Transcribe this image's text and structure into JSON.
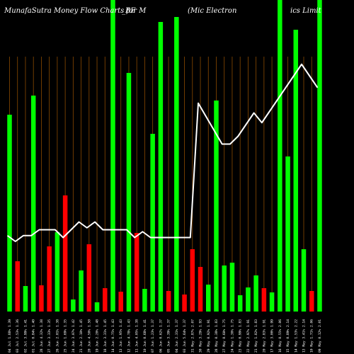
{
  "chart_data": {
    "type": "bar",
    "title_left": "MunafaSutra  Money Flow  Charts for M",
    "title_mid": "_BE",
    "title_right_1": "(Mic Electron",
    "title_right_2": "ics Limit",
    "colors": {
      "up": "#00ff00",
      "down": "#ff0000",
      "grid": "#8b4a00",
      "line": "#ffffff",
      "background": "#000000"
    },
    "bars": [
      {
        "label": "04 Jul 1.88% 1.39",
        "value": 278,
        "color": "up"
      },
      {
        "label": "03 Jul 2.53% 1.36",
        "value": 71,
        "color": "down"
      },
      {
        "label": "02 Jul 3.99% 1.41",
        "value": 36,
        "color": "up"
      },
      {
        "label": "01 Jul 0.84% 1.40",
        "value": 305,
        "color": "up"
      },
      {
        "label": "28 Jun 4.32% 1.38",
        "value": 37,
        "color": "down"
      },
      {
        "label": "27 Jun 3.33% 1.35",
        "value": 92,
        "color": "down"
      },
      {
        "label": "26 Jun 2.01% 1.38",
        "value": 112,
        "color": "up"
      },
      {
        "label": "25 Jun 1.69% 1.35",
        "value": 164,
        "color": "down"
      },
      {
        "label": "24 Jun 3.07% 1.42",
        "value": 17,
        "color": "up"
      },
      {
        "label": "21 Jun 2.10% 1.45",
        "value": 58,
        "color": "up"
      },
      {
        "label": "20 Jun 4.50% 1.50",
        "value": 95,
        "color": "down"
      },
      {
        "label": "19 Jun 2.20% 1.48",
        "value": 13,
        "color": "up"
      },
      {
        "label": "18 Jun 3.31% 1.45",
        "value": 33,
        "color": "down"
      },
      {
        "label": "14 Jun 0.75% 1.43",
        "value": 440,
        "color": "up"
      },
      {
        "label": "13 Jun 1.95% 1.43",
        "value": 28,
        "color": "down"
      },
      {
        "label": "12 Jun 4.78% 1.43",
        "value": 337,
        "color": "up"
      },
      {
        "label": "11 Jun 4.05% 1.38",
        "value": 111,
        "color": "down"
      },
      {
        "label": "10 Jun 0.68% 1.41",
        "value": 32,
        "color": "up"
      },
      {
        "label": "07 Jun 1.23% 1.37",
        "value": 251,
        "color": "up"
      },
      {
        "label": "06 Jun 0.62% 1.37",
        "value": 409,
        "color": "up"
      },
      {
        "label": "05 Jun 3.39% 1.37",
        "value": 29,
        "color": "down"
      },
      {
        "label": "04 Jun 2.31% 1.37",
        "value": 416,
        "color": "up"
      },
      {
        "label": "03 Jun 5.64% 1.37",
        "value": 24,
        "color": "down"
      },
      {
        "label": "31 May 2.87% 2.07",
        "value": 88,
        "color": "down"
      },
      {
        "label": "30 May 3.29% 1.93",
        "value": 63,
        "color": "down"
      },
      {
        "label": "29 May 0.92% 1.91",
        "value": 38,
        "color": "up"
      },
      {
        "label": "28 May 0.38% 1.83",
        "value": 298,
        "color": "up"
      },
      {
        "label": "27 May 0.60% 1.75",
        "value": 65,
        "color": "up"
      },
      {
        "label": "24 May 1.30% 1.75",
        "value": 69,
        "color": "up"
      },
      {
        "label": "23 May 0.99% 1.83",
        "value": 23,
        "color": "up"
      },
      {
        "label": "22 May 2.97% 1.91",
        "value": 34,
        "color": "up"
      },
      {
        "label": "21 May 1.82% 1.83",
        "value": 51,
        "color": "up"
      },
      {
        "label": "20 May 2.83% 1.91",
        "value": 33,
        "color": "down"
      },
      {
        "label": "17 May 3.00% 1.99",
        "value": 27,
        "color": "up"
      },
      {
        "label": "16 May 0.55% 2.06",
        "value": 440,
        "color": "up"
      },
      {
        "label": "15 May 0.89% 2.14",
        "value": 219,
        "color": "up"
      },
      {
        "label": "14 May 1.53% 2.22",
        "value": 398,
        "color": "up"
      },
      {
        "label": "13 May 3.41% 2.14",
        "value": 88,
        "color": "up"
      },
      {
        "label": "10 May 1.71% 2.06",
        "value": 29,
        "color": "down"
      },
      {
        "label": "09 May 0.12% 2.01",
        "value": 440,
        "color": "up"
      }
    ],
    "line": [
      1.39,
      1.36,
      1.39,
      1.39,
      1.42,
      1.42,
      1.42,
      1.38,
      1.42,
      1.46,
      1.43,
      1.46,
      1.42,
      1.42,
      1.42,
      1.42,
      1.38,
      1.41,
      1.38,
      1.38,
      1.38,
      1.38,
      1.38,
      1.38,
      2.07,
      2.0,
      1.93,
      1.86,
      1.86,
      1.9,
      1.96,
      2.02,
      1.97,
      2.03,
      2.09,
      2.15,
      2.21,
      2.27,
      2.21,
      2.15
    ],
    "ylim_bars": [
      0,
      440
    ],
    "ylim_line": [
      1.0,
      2.6
    ],
    "grid": true
  }
}
